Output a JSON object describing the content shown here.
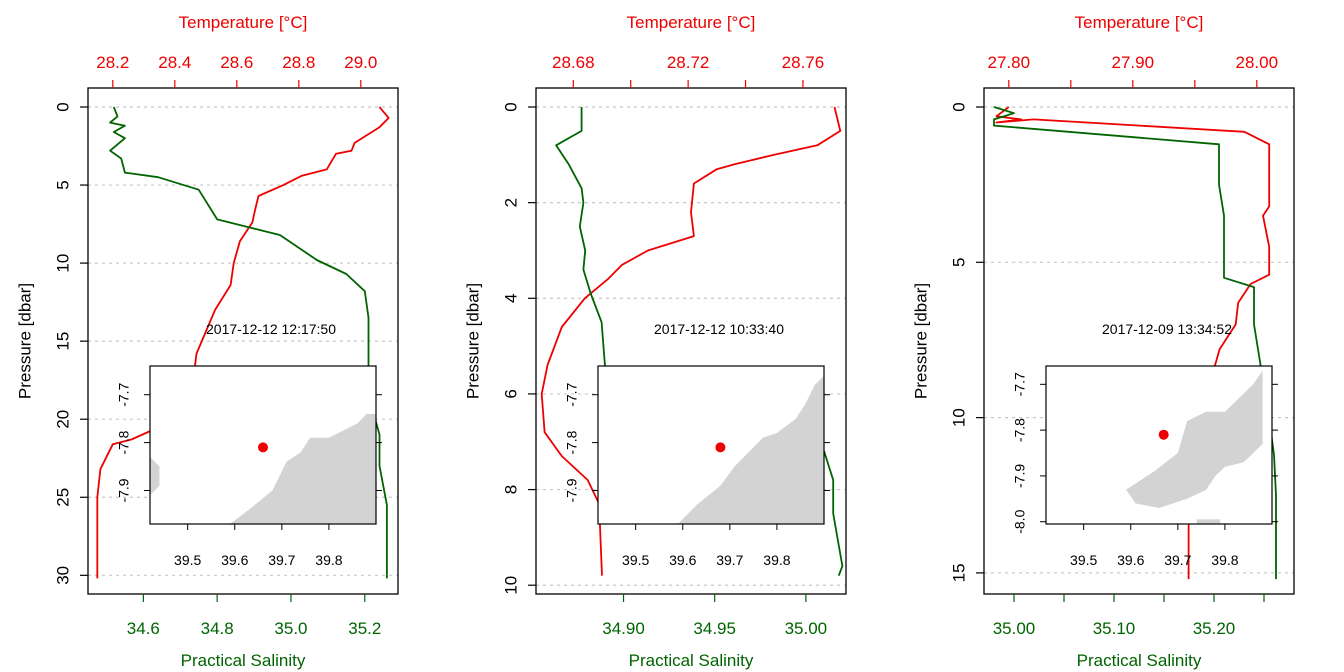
{
  "colors": {
    "temperature": "#ee0000",
    "salinity": "#006400",
    "land": "#d3d3d3",
    "station": "#ee0000",
    "grid": "#c8c8c8",
    "axis": "#000000"
  },
  "chart_data": [
    {
      "type": "line",
      "y_label": "Pressure [dbar]",
      "temperature_label": "Temperature [°C]",
      "salinity_label": "Practical Salinity",
      "timestamp": "2017-12-12 12:17:50",
      "y_range": [
        0,
        30.3
      ],
      "y_ticks": [
        0,
        5,
        10,
        15,
        20,
        25,
        30
      ],
      "y_tick_labels": [
        "0",
        "5",
        "10",
        "15",
        "20",
        "25",
        "30"
      ],
      "temperature_range": [
        28.12,
        29.12
      ],
      "temperature_ticks": [
        28.2,
        28.4,
        28.6,
        28.8,
        29.0
      ],
      "temperature_tick_labels": [
        "28.2",
        "28.4",
        "28.6",
        "28.8",
        "29.0"
      ],
      "salinity_range": [
        34.45,
        35.29
      ],
      "salinity_ticks": [
        34.6,
        34.8,
        35.0,
        35.2
      ],
      "salinity_tick_labels": [
        "34.6",
        "34.8",
        "35.0",
        "35.2"
      ],
      "temperature_profile": [
        {
          "t": 29.06,
          "p": 0.0
        },
        {
          "t": 29.09,
          "p": 0.7
        },
        {
          "t": 29.06,
          "p": 1.3
        },
        {
          "t": 28.98,
          "p": 2.3
        },
        {
          "t": 28.97,
          "p": 2.8
        },
        {
          "t": 28.92,
          "p": 3.0
        },
        {
          "t": 28.89,
          "p": 4.0
        },
        {
          "t": 28.81,
          "p": 4.4
        },
        {
          "t": 28.75,
          "p": 5.0
        },
        {
          "t": 28.67,
          "p": 5.7
        },
        {
          "t": 28.66,
          "p": 6.5
        },
        {
          "t": 28.65,
          "p": 7.4
        },
        {
          "t": 28.61,
          "p": 8.6
        },
        {
          "t": 28.59,
          "p": 10.0
        },
        {
          "t": 28.58,
          "p": 11.4
        },
        {
          "t": 28.53,
          "p": 13.0
        },
        {
          "t": 28.47,
          "p": 15.8
        },
        {
          "t": 28.46,
          "p": 17.4
        },
        {
          "t": 28.39,
          "p": 19.5
        },
        {
          "t": 28.35,
          "p": 20.5
        },
        {
          "t": 28.26,
          "p": 21.3
        },
        {
          "t": 28.2,
          "p": 21.6
        },
        {
          "t": 28.16,
          "p": 23.2
        },
        {
          "t": 28.15,
          "p": 25.0
        },
        {
          "t": 28.15,
          "p": 30.2
        }
      ],
      "salinity_profile": [
        {
          "s": 34.52,
          "p": 0.0
        },
        {
          "s": 34.53,
          "p": 0.6
        },
        {
          "s": 34.51,
          "p": 1.0
        },
        {
          "s": 34.55,
          "p": 1.2
        },
        {
          "s": 34.52,
          "p": 1.6
        },
        {
          "s": 34.55,
          "p": 2.0
        },
        {
          "s": 34.51,
          "p": 2.8
        },
        {
          "s": 34.54,
          "p": 3.3
        },
        {
          "s": 34.55,
          "p": 4.2
        },
        {
          "s": 34.64,
          "p": 4.5
        },
        {
          "s": 34.75,
          "p": 5.3
        },
        {
          "s": 34.8,
          "p": 7.2
        },
        {
          "s": 34.97,
          "p": 8.2
        },
        {
          "s": 35.07,
          "p": 9.8
        },
        {
          "s": 35.15,
          "p": 10.7
        },
        {
          "s": 35.2,
          "p": 11.8
        },
        {
          "s": 35.21,
          "p": 13.5
        },
        {
          "s": 35.21,
          "p": 16.5
        },
        {
          "s": 35.22,
          "p": 19.3
        },
        {
          "s": 35.24,
          "p": 21.0
        },
        {
          "s": 35.24,
          "p": 23.0
        },
        {
          "s": 35.26,
          "p": 25.5
        },
        {
          "s": 35.26,
          "p": 30.2
        }
      ],
      "inset": {
        "lon_range": [
          39.42,
          39.9
        ],
        "lat_range": [
          -7.97,
          -7.64
        ],
        "lon_ticks": [
          39.5,
          39.6,
          39.7,
          39.8
        ],
        "lon_tick_labels": [
          "39.5",
          "39.6",
          "39.7",
          "39.8"
        ],
        "lat_ticks": [
          -7.7,
          -7.8,
          -7.9
        ],
        "lat_tick_labels": [
          "-7.7",
          "-7.8",
          "-7.9"
        ],
        "station": {
          "lon": 39.66,
          "lat": -7.81
        },
        "land": [
          [
            [
              39.88,
              -7.74
            ],
            [
              39.9,
              -7.74
            ],
            [
              39.9,
              -7.97
            ],
            [
              39.59,
              -7.97
            ],
            [
              39.63,
              -7.94
            ],
            [
              39.68,
              -7.9
            ],
            [
              39.71,
              -7.84
            ],
            [
              39.74,
              -7.82
            ],
            [
              39.76,
              -7.79
            ],
            [
              39.8,
              -7.79
            ],
            [
              39.84,
              -7.77
            ],
            [
              39.86,
              -7.76
            ]
          ],
          [
            [
              39.42,
              -7.83
            ],
            [
              39.44,
              -7.85
            ],
            [
              39.44,
              -7.89
            ],
            [
              39.42,
              -7.91
            ]
          ]
        ]
      }
    },
    {
      "type": "line",
      "y_label": "Pressure [dbar]",
      "temperature_label": "Temperature [°C]",
      "salinity_label": "Practical Salinity",
      "timestamp": "2017-12-12 10:33:40",
      "y_range": [
        0,
        10.1
      ],
      "y_ticks": [
        0,
        2,
        4,
        6,
        8,
        10
      ],
      "y_tick_labels": [
        "0",
        "2",
        "4",
        "6",
        "8",
        "10"
      ],
      "temperature_range": [
        28.667,
        28.775
      ],
      "temperature_ticks": [
        28.68,
        28.7,
        28.72,
        28.74,
        28.76
      ],
      "temperature_tick_labels": [
        "28.68",
        "",
        "28.72",
        "",
        "28.76"
      ],
      "salinity_range": [
        34.852,
        35.022
      ],
      "salinity_ticks": [
        34.9,
        34.95,
        35.0
      ],
      "salinity_tick_labels": [
        "34.90",
        "34.95",
        "35.00"
      ],
      "temperature_profile": [
        {
          "t": 28.771,
          "p": 0.0
        },
        {
          "t": 28.773,
          "p": 0.5
        },
        {
          "t": 28.765,
          "p": 0.8
        },
        {
          "t": 28.75,
          "p": 1.0
        },
        {
          "t": 28.736,
          "p": 1.2
        },
        {
          "t": 28.73,
          "p": 1.3
        },
        {
          "t": 28.722,
          "p": 1.6
        },
        {
          "t": 28.721,
          "p": 2.2
        },
        {
          "t": 28.722,
          "p": 2.7
        },
        {
          "t": 28.706,
          "p": 3.0
        },
        {
          "t": 28.697,
          "p": 3.3
        },
        {
          "t": 28.692,
          "p": 3.6
        },
        {
          "t": 28.684,
          "p": 4.0
        },
        {
          "t": 28.676,
          "p": 4.6
        },
        {
          "t": 28.671,
          "p": 5.4
        },
        {
          "t": 28.669,
          "p": 6.0
        },
        {
          "t": 28.67,
          "p": 6.8
        },
        {
          "t": 28.676,
          "p": 7.3
        },
        {
          "t": 28.685,
          "p": 7.8
        },
        {
          "t": 28.689,
          "p": 8.3
        },
        {
          "t": 28.69,
          "p": 9.8
        }
      ],
      "salinity_profile": [
        {
          "s": 34.877,
          "p": 0.0
        },
        {
          "s": 34.877,
          "p": 0.5
        },
        {
          "s": 34.863,
          "p": 0.8
        },
        {
          "s": 34.87,
          "p": 1.2
        },
        {
          "s": 34.877,
          "p": 1.7
        },
        {
          "s": 34.878,
          "p": 2.0
        },
        {
          "s": 34.876,
          "p": 2.5
        },
        {
          "s": 34.879,
          "p": 3.0
        },
        {
          "s": 34.878,
          "p": 3.4
        },
        {
          "s": 34.882,
          "p": 3.9
        },
        {
          "s": 34.888,
          "p": 4.5
        },
        {
          "s": 34.89,
          "p": 5.5
        },
        {
          "s": 34.895,
          "p": 5.8
        },
        {
          "s": 34.935,
          "p": 6.2
        },
        {
          "s": 34.975,
          "p": 6.6
        },
        {
          "s": 35.01,
          "p": 7.2
        },
        {
          "s": 35.015,
          "p": 7.8
        },
        {
          "s": 35.015,
          "p": 8.5
        },
        {
          "s": 35.02,
          "p": 9.6
        },
        {
          "s": 35.018,
          "p": 9.8
        }
      ],
      "inset": {
        "lon_range": [
          39.42,
          39.9
        ],
        "lat_range": [
          -7.97,
          -7.64
        ],
        "lon_ticks": [
          39.5,
          39.6,
          39.7,
          39.8
        ],
        "lon_tick_labels": [
          "39.5",
          "39.6",
          "39.7",
          "39.8"
        ],
        "lat_ticks": [
          -7.7,
          -7.8,
          -7.9
        ],
        "lat_tick_labels": [
          "-7.7",
          "-7.8",
          "-7.9"
        ],
        "station": {
          "lon": 39.68,
          "lat": -7.81
        },
        "land": [
          [
            [
              39.88,
              -7.68
            ],
            [
              39.9,
              -7.66
            ],
            [
              39.9,
              -7.97
            ],
            [
              39.59,
              -7.97
            ],
            [
              39.63,
              -7.93
            ],
            [
              39.68,
              -7.89
            ],
            [
              39.71,
              -7.85
            ],
            [
              39.74,
              -7.82
            ],
            [
              39.77,
              -7.79
            ],
            [
              39.8,
              -7.78
            ],
            [
              39.84,
              -7.75
            ],
            [
              39.86,
              -7.72
            ]
          ]
        ]
      }
    },
    {
      "type": "line",
      "y_label": "Pressure [dbar]",
      "temperature_label": "Temperature [°C]",
      "salinity_label": "Practical Salinity",
      "timestamp": "2017-12-09 13:34:52",
      "y_range": [
        0,
        15.1
      ],
      "y_ticks": [
        0,
        5,
        10,
        15
      ],
      "y_tick_labels": [
        "0",
        "5",
        "10",
        "15"
      ],
      "temperature_range": [
        27.78,
        28.03
      ],
      "temperature_ticks": [
        27.8,
        27.85,
        27.9,
        27.95,
        28.0
      ],
      "temperature_tick_labels": [
        "27.80",
        "",
        "27.90",
        "",
        "28.00"
      ],
      "salinity_range": [
        34.97,
        35.28
      ],
      "salinity_ticks": [
        35.0,
        35.05,
        35.1,
        35.15,
        35.2,
        35.25
      ],
      "salinity_tick_labels": [
        "35.00",
        "",
        "35.10",
        "",
        "35.20",
        ""
      ],
      "temperature_profile": [
        {
          "t": 27.8,
          "p": 0.0
        },
        {
          "t": 27.79,
          "p": 0.3
        },
        {
          "t": 27.81,
          "p": 0.4
        },
        {
          "t": 27.79,
          "p": 0.5
        },
        {
          "t": 27.82,
          "p": 0.4
        },
        {
          "t": 27.99,
          "p": 0.8
        },
        {
          "t": 28.01,
          "p": 1.2
        },
        {
          "t": 28.01,
          "p": 3.2
        },
        {
          "t": 28.005,
          "p": 3.5
        },
        {
          "t": 28.01,
          "p": 4.5
        },
        {
          "t": 28.01,
          "p": 5.4
        },
        {
          "t": 27.995,
          "p": 5.7
        },
        {
          "t": 27.985,
          "p": 6.3
        },
        {
          "t": 27.983,
          "p": 7.0
        },
        {
          "t": 27.97,
          "p": 7.8
        },
        {
          "t": 27.965,
          "p": 8.5
        },
        {
          "t": 27.96,
          "p": 9.5
        },
        {
          "t": 27.955,
          "p": 10.5
        },
        {
          "t": 27.95,
          "p": 12.0
        },
        {
          "t": 27.945,
          "p": 13.5
        },
        {
          "t": 27.945,
          "p": 15.2
        }
      ],
      "salinity_profile": [
        {
          "s": 34.98,
          "p": 0.0
        },
        {
          "s": 35.0,
          "p": 0.2
        },
        {
          "s": 34.98,
          "p": 0.4
        },
        {
          "s": 34.98,
          "p": 0.6
        },
        {
          "s": 35.205,
          "p": 1.2
        },
        {
          "s": 35.205,
          "p": 2.5
        },
        {
          "s": 35.21,
          "p": 3.5
        },
        {
          "s": 35.21,
          "p": 4.5
        },
        {
          "s": 35.21,
          "p": 5.5
        },
        {
          "s": 35.24,
          "p": 5.8
        },
        {
          "s": 35.24,
          "p": 7.0
        },
        {
          "s": 35.245,
          "p": 8.0
        },
        {
          "s": 35.25,
          "p": 9.0
        },
        {
          "s": 35.255,
          "p": 10.0
        },
        {
          "s": 35.26,
          "p": 11.2
        },
        {
          "s": 35.262,
          "p": 12.5
        },
        {
          "s": 35.262,
          "p": 15.2
        }
      ],
      "inset": {
        "lon_range": [
          39.42,
          39.9
        ],
        "lat_range": [
          -8.005,
          -7.66
        ],
        "lon_ticks": [
          39.5,
          39.6,
          39.7,
          39.8
        ],
        "lon_tick_labels": [
          "39.5",
          "39.6",
          "39.7",
          "39.8"
        ],
        "lat_ticks": [
          -7.7,
          -7.8,
          -7.9,
          -8.0
        ],
        "lat_tick_labels": [
          "-7.7",
          "-7.8",
          "-7.9",
          "-8.0"
        ],
        "station": {
          "lon": 39.67,
          "lat": -7.81
        },
        "land": [
          [
            [
              39.72,
              -7.78
            ],
            [
              39.76,
              -7.76
            ],
            [
              39.8,
              -7.76
            ],
            [
              39.83,
              -7.73
            ],
            [
              39.86,
              -7.7
            ],
            [
              39.88,
              -7.67
            ],
            [
              39.88,
              -7.83
            ],
            [
              39.84,
              -7.87
            ],
            [
              39.8,
              -7.88
            ],
            [
              39.78,
              -7.9
            ],
            [
              39.76,
              -7.93
            ],
            [
              39.72,
              -7.95
            ],
            [
              39.66,
              -7.97
            ],
            [
              39.61,
              -7.96
            ],
            [
              39.59,
              -7.93
            ],
            [
              39.65,
              -7.89
            ],
            [
              39.7,
              -7.85
            ]
          ],
          [
            [
              39.74,
              -7.995
            ],
            [
              39.79,
              -7.995
            ],
            [
              39.79,
              -8.005
            ],
            [
              39.74,
              -8.005
            ]
          ]
        ]
      }
    }
  ]
}
